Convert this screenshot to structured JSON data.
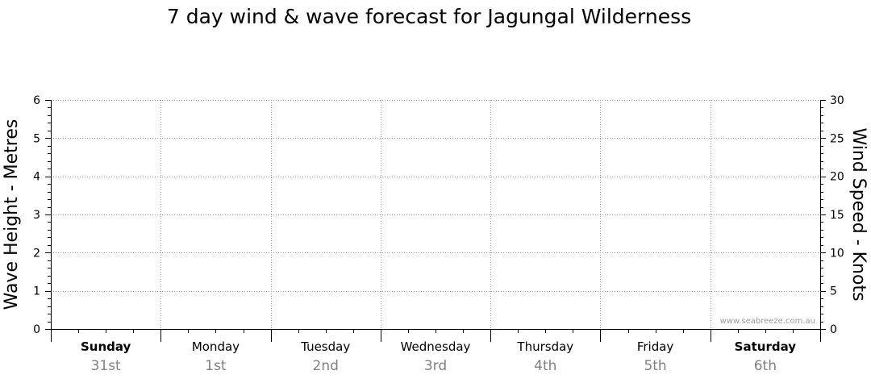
{
  "chart_data": {
    "type": "line",
    "title": "7 day wind & wave forecast for Jagungal Wilderness",
    "y_left": {
      "label": "Wave Height - Metres",
      "range": [
        0,
        6
      ],
      "ticks": [
        0,
        1,
        2,
        3,
        4,
        5,
        6
      ]
    },
    "y_right": {
      "label": "Wind Speed - Knots",
      "range": [
        0,
        30
      ],
      "ticks": [
        0,
        5,
        10,
        15,
        20,
        25,
        30
      ]
    },
    "days": [
      {
        "name": "Sunday",
        "date": "31st",
        "bold": true
      },
      {
        "name": "Monday",
        "date": "1st",
        "bold": false
      },
      {
        "name": "Tuesday",
        "date": "2nd",
        "bold": false
      },
      {
        "name": "Wednesday",
        "date": "3rd",
        "bold": false
      },
      {
        "name": "Thursday",
        "date": "4th",
        "bold": false
      },
      {
        "name": "Friday",
        "date": "5th",
        "bold": false
      },
      {
        "name": "Saturday",
        "date": "6th",
        "bold": true
      }
    ],
    "series": [],
    "grid": true,
    "watermark": "www.seabreeze.com.au"
  }
}
